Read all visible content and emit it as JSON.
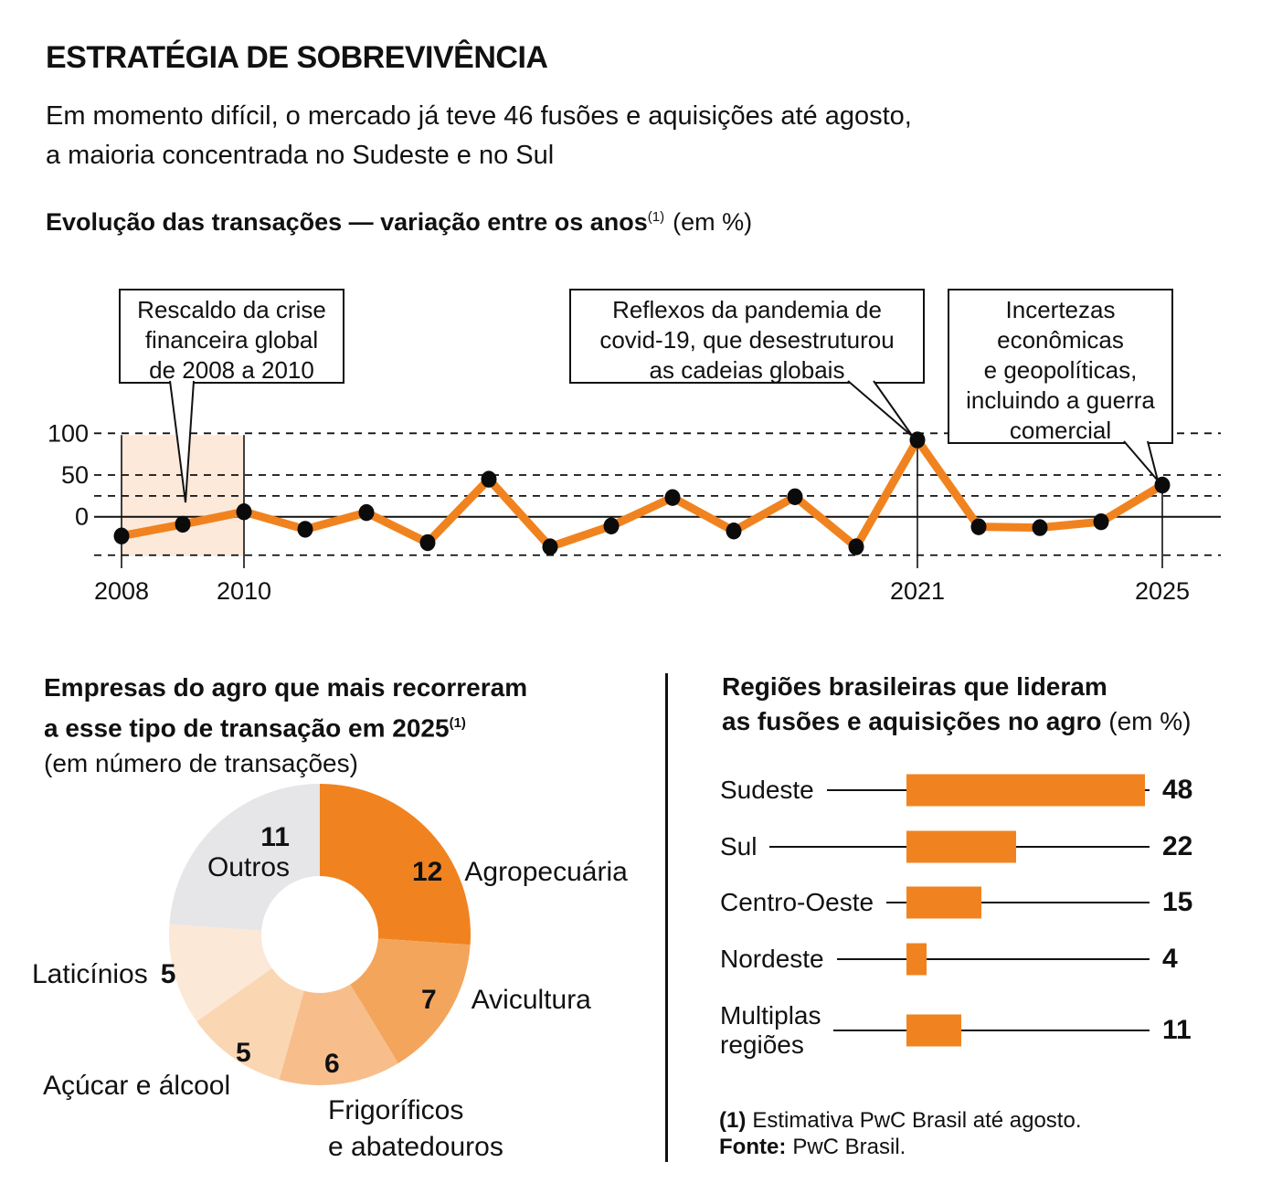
{
  "header": {
    "title": "ESTRATÉGIA DE SOBREVIVÊNCIA",
    "subtitle_line1": "Em momento difícil, o mercado já teve 46 fusões e aquisições até agosto,",
    "subtitle_line2": "a maioria concentrada no Sudeste e no Sul"
  },
  "evolution": {
    "heading_bold": "Evolução das transações — variação entre os anos",
    "heading_sup": "(1)",
    "heading_suffix": "(em %)",
    "callouts": [
      {
        "lines": [
          "Rescaldo da crise",
          "financeira global",
          "de 2008 a 2010"
        ]
      },
      {
        "lines": [
          "Reflexos da pandemia de",
          "covid-19, que desestruturou",
          "as cadeias globais"
        ]
      },
      {
        "lines": [
          "Incertezas",
          "econômicas",
          "e geopolíticas,",
          "incluindo a guerra",
          "comercial"
        ]
      }
    ]
  },
  "left_panel": {
    "title_line1": "Empresas do agro que mais recorreram",
    "title_line2": "a esse tipo de transação em 2025",
    "title_sup": "(1)",
    "title_line3": "(em número de transações)"
  },
  "right_panel": {
    "title_line1": "Regiões brasileiras que lideram",
    "title_line2_bold": "as fusões e aquisições no agro",
    "title_line2_suffix": "(em %)"
  },
  "footnotes": {
    "note1_bold": "(1)",
    "note1_text": "Estimativa PwC Brasil até agosto.",
    "source_bold": "Fonte:",
    "source_text": "PwC Brasil."
  },
  "colors": {
    "orange": "#f0831f",
    "band": "#fce9d9",
    "ink": "#111111"
  },
  "chart_data": [
    {
      "type": "line",
      "title": "Evolução das transações — variação entre os anos (em %)",
      "x": [
        2008,
        2009,
        2010,
        2011,
        2012,
        2013,
        2014,
        2015,
        2016,
        2017,
        2018,
        2019,
        2020,
        2021,
        2022,
        2023,
        2024,
        2025
      ],
      "values": [
        -23,
        -9,
        6,
        -15,
        5,
        -31,
        45,
        -36,
        -11,
        23,
        -17,
        24,
        -36,
        92,
        -12,
        -13,
        -6,
        38
      ],
      "x_tick_years": [
        2008,
        2010,
        2021,
        2025
      ],
      "x_tick_labels": [
        "2008",
        "2010",
        "2021",
        "2025"
      ],
      "y_tick_values": [
        100,
        50,
        0
      ],
      "dashed_gridlines": [
        100,
        50,
        25,
        -46
      ],
      "zero_line": 0,
      "highlight_band": {
        "from": 2008,
        "to": 2010
      },
      "marker_years": [
        2008,
        2010,
        2021,
        2025
      ],
      "ylim": [
        -60,
        115
      ],
      "legend": "none",
      "grid": "dashed-horizontal"
    },
    {
      "type": "pie",
      "donut": true,
      "title": "Empresas do agro que mais recorreram a esse tipo de transação em 2025 (em número de transações)",
      "total": 46,
      "segments": [
        {
          "label": "Agropecuária",
          "value": 12,
          "color": "#f0831f"
        },
        {
          "label": "Avicultura",
          "value": 7,
          "color": "#f4a55c"
        },
        {
          "label": "Frigoríficos e abatedouros",
          "label_lines": [
            "Frigoríficos",
            "e abatedouros"
          ],
          "value": 6,
          "color": "#f7be8c"
        },
        {
          "label": "Açúcar e álcool",
          "value": 5,
          "color": "#fad6b3"
        },
        {
          "label": "Laticínios",
          "value": 5,
          "color": "#fce8d6"
        },
        {
          "label": "Outros",
          "value": 11,
          "color": "#e6e6e8"
        }
      ]
    },
    {
      "type": "bar",
      "title": "Regiões brasileiras que lideram as fusões e aquisições no agro (em %)",
      "orientation": "horizontal",
      "rows": [
        {
          "label": "Sudeste",
          "value": 48
        },
        {
          "label": "Sul",
          "value": 22
        },
        {
          "label": "Centro-Oeste",
          "value": 15
        },
        {
          "label": "Nordeste",
          "value": 4
        },
        {
          "label": "Multiplas",
          "label2": "regiões",
          "value": 11
        }
      ]
    }
  ]
}
